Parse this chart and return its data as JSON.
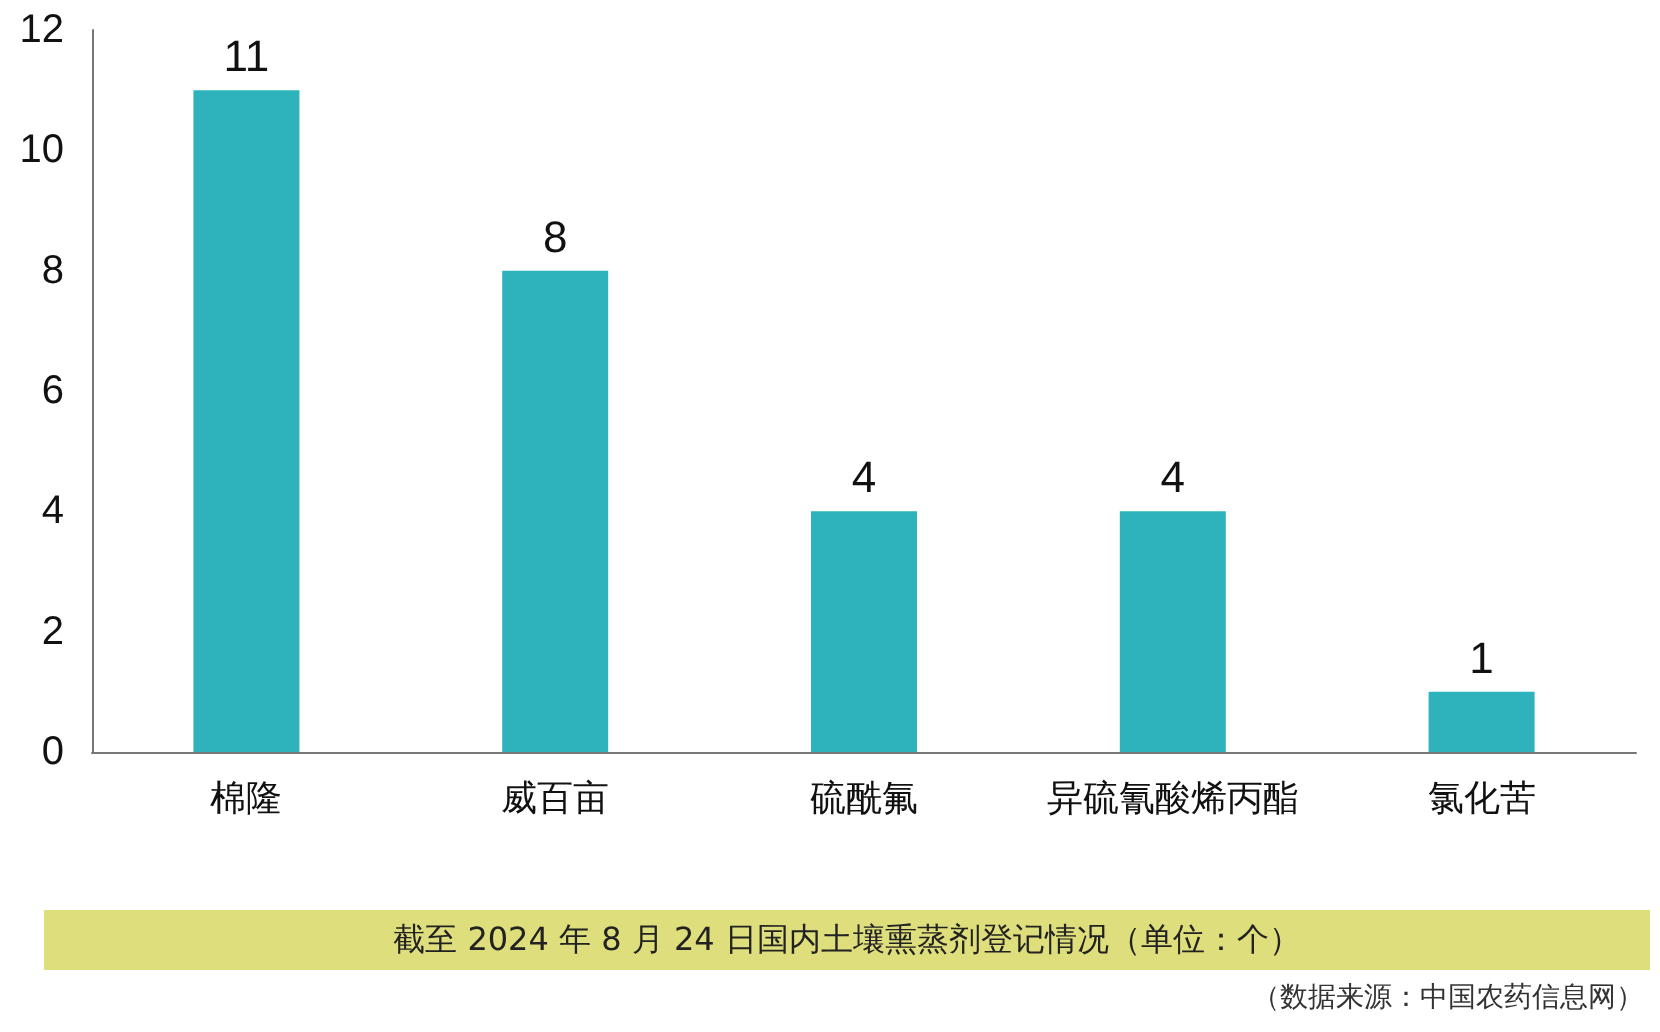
{
  "chart_data": {
    "type": "bar",
    "title": "截至 2024 年 8 月 24 日国内土壤熏蒸剂登记情况（单位：个）",
    "annotations": [
      "（数据来源：中国农药信息网）"
    ],
    "categories": [
      "棉隆",
      "威百亩",
      "硫酰氟",
      "异硫氰酸烯丙酯",
      "氯化苦"
    ],
    "values": [
      11,
      8,
      4,
      4,
      1
    ],
    "color": "#2eb3bd",
    "ylim": [
      0,
      12
    ],
    "yticks": [
      0,
      2,
      4,
      6,
      8,
      10,
      12
    ],
    "grid": false,
    "data_labels": true
  }
}
